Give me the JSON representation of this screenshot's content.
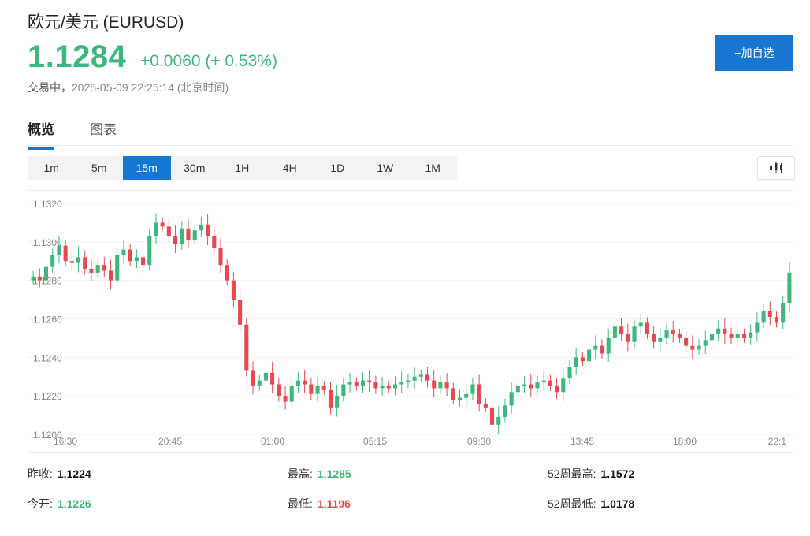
{
  "header": {
    "title": "欧元/美元  (EURUSD)",
    "price": "1.1284",
    "change": "+0.0060 (+ 0.53%)",
    "status_label": "交易中，",
    "timestamp": "2025-05-09 22:25:14  (北京时间)",
    "add_button_label": "+加自选"
  },
  "tabs": [
    {
      "label": "概览",
      "active": true
    },
    {
      "label": "图表",
      "active": false
    }
  ],
  "periods": [
    "1m",
    "5m",
    "15m",
    "30m",
    "1H",
    "4H",
    "1D",
    "1W",
    "1M"
  ],
  "active_period": "15m",
  "chart_type_icon": "candlestick-icon",
  "colors": {
    "up": "#3cb87c",
    "down": "#e9484d",
    "accent": "#1677d2"
  },
  "chart_data": {
    "type": "candlestick",
    "y_ticks": [
      "1.1200",
      "1.1220",
      "1.1240",
      "1.1260",
      "1.1280",
      "1.1300",
      "1.1320"
    ],
    "x_ticks": [
      "16:30",
      "20:45",
      "01:00",
      "05:15",
      "09:30",
      "13:45",
      "18:00",
      "22:1"
    ],
    "ylim": [
      1.12,
      1.132
    ],
    "grid": true,
    "closes": [
      1.1282,
      1.128,
      1.1287,
      1.1293,
      1.1298,
      1.129,
      1.1289,
      1.1292,
      1.1286,
      1.1284,
      1.1288,
      1.1285,
      1.128,
      1.1293,
      1.1296,
      1.129,
      1.1292,
      1.1288,
      1.1303,
      1.131,
      1.1308,
      1.1303,
      1.1299,
      1.1307,
      1.1301,
      1.1306,
      1.1309,
      1.1303,
      1.1297,
      1.1288,
      1.128,
      1.127,
      1.1257,
      1.1233,
      1.1225,
      1.1228,
      1.1232,
      1.1226,
      1.122,
      1.1217,
      1.1225,
      1.1228,
      1.1226,
      1.1221,
      1.1225,
      1.1223,
      1.1214,
      1.122,
      1.1226,
      1.1227,
      1.1225,
      1.1228,
      1.1227,
      1.1224,
      1.1225,
      1.1224,
      1.1226,
      1.1227,
      1.1228,
      1.123,
      1.1231,
      1.1228,
      1.1224,
      1.1227,
      1.1224,
      1.1218,
      1.1219,
      1.1221,
      1.1226,
      1.1216,
      1.1214,
      1.1205,
      1.1209,
      1.1215,
      1.1222,
      1.1225,
      1.1226,
      1.1224,
      1.1227,
      1.1228,
      1.1225,
      1.1222,
      1.1229,
      1.1235,
      1.124,
      1.1238,
      1.1244,
      1.1246,
      1.1242,
      1.125,
      1.1256,
      1.1252,
      1.1248,
      1.1256,
      1.1258,
      1.1252,
      1.1248,
      1.125,
      1.1254,
      1.1252,
      1.125,
      1.1246,
      1.1244,
      1.1246,
      1.1249,
      1.1252,
      1.1255,
      1.1252,
      1.125,
      1.1252,
      1.125,
      1.1253,
      1.1258,
      1.1264,
      1.1261,
      1.1258,
      1.1268,
      1.1284
    ]
  },
  "stats": {
    "prev_close": {
      "label": "昨收:",
      "value": "1.1224"
    },
    "open": {
      "label": "今开:",
      "value": "1.1226"
    },
    "high": {
      "label": "最高:",
      "value": "1.1285"
    },
    "low": {
      "label": "最低:",
      "value": "1.1196"
    },
    "week52_high": {
      "label": "52周最高:",
      "value": "1.1572"
    },
    "week52_low": {
      "label": "52周最低:",
      "value": "1.0178"
    }
  }
}
